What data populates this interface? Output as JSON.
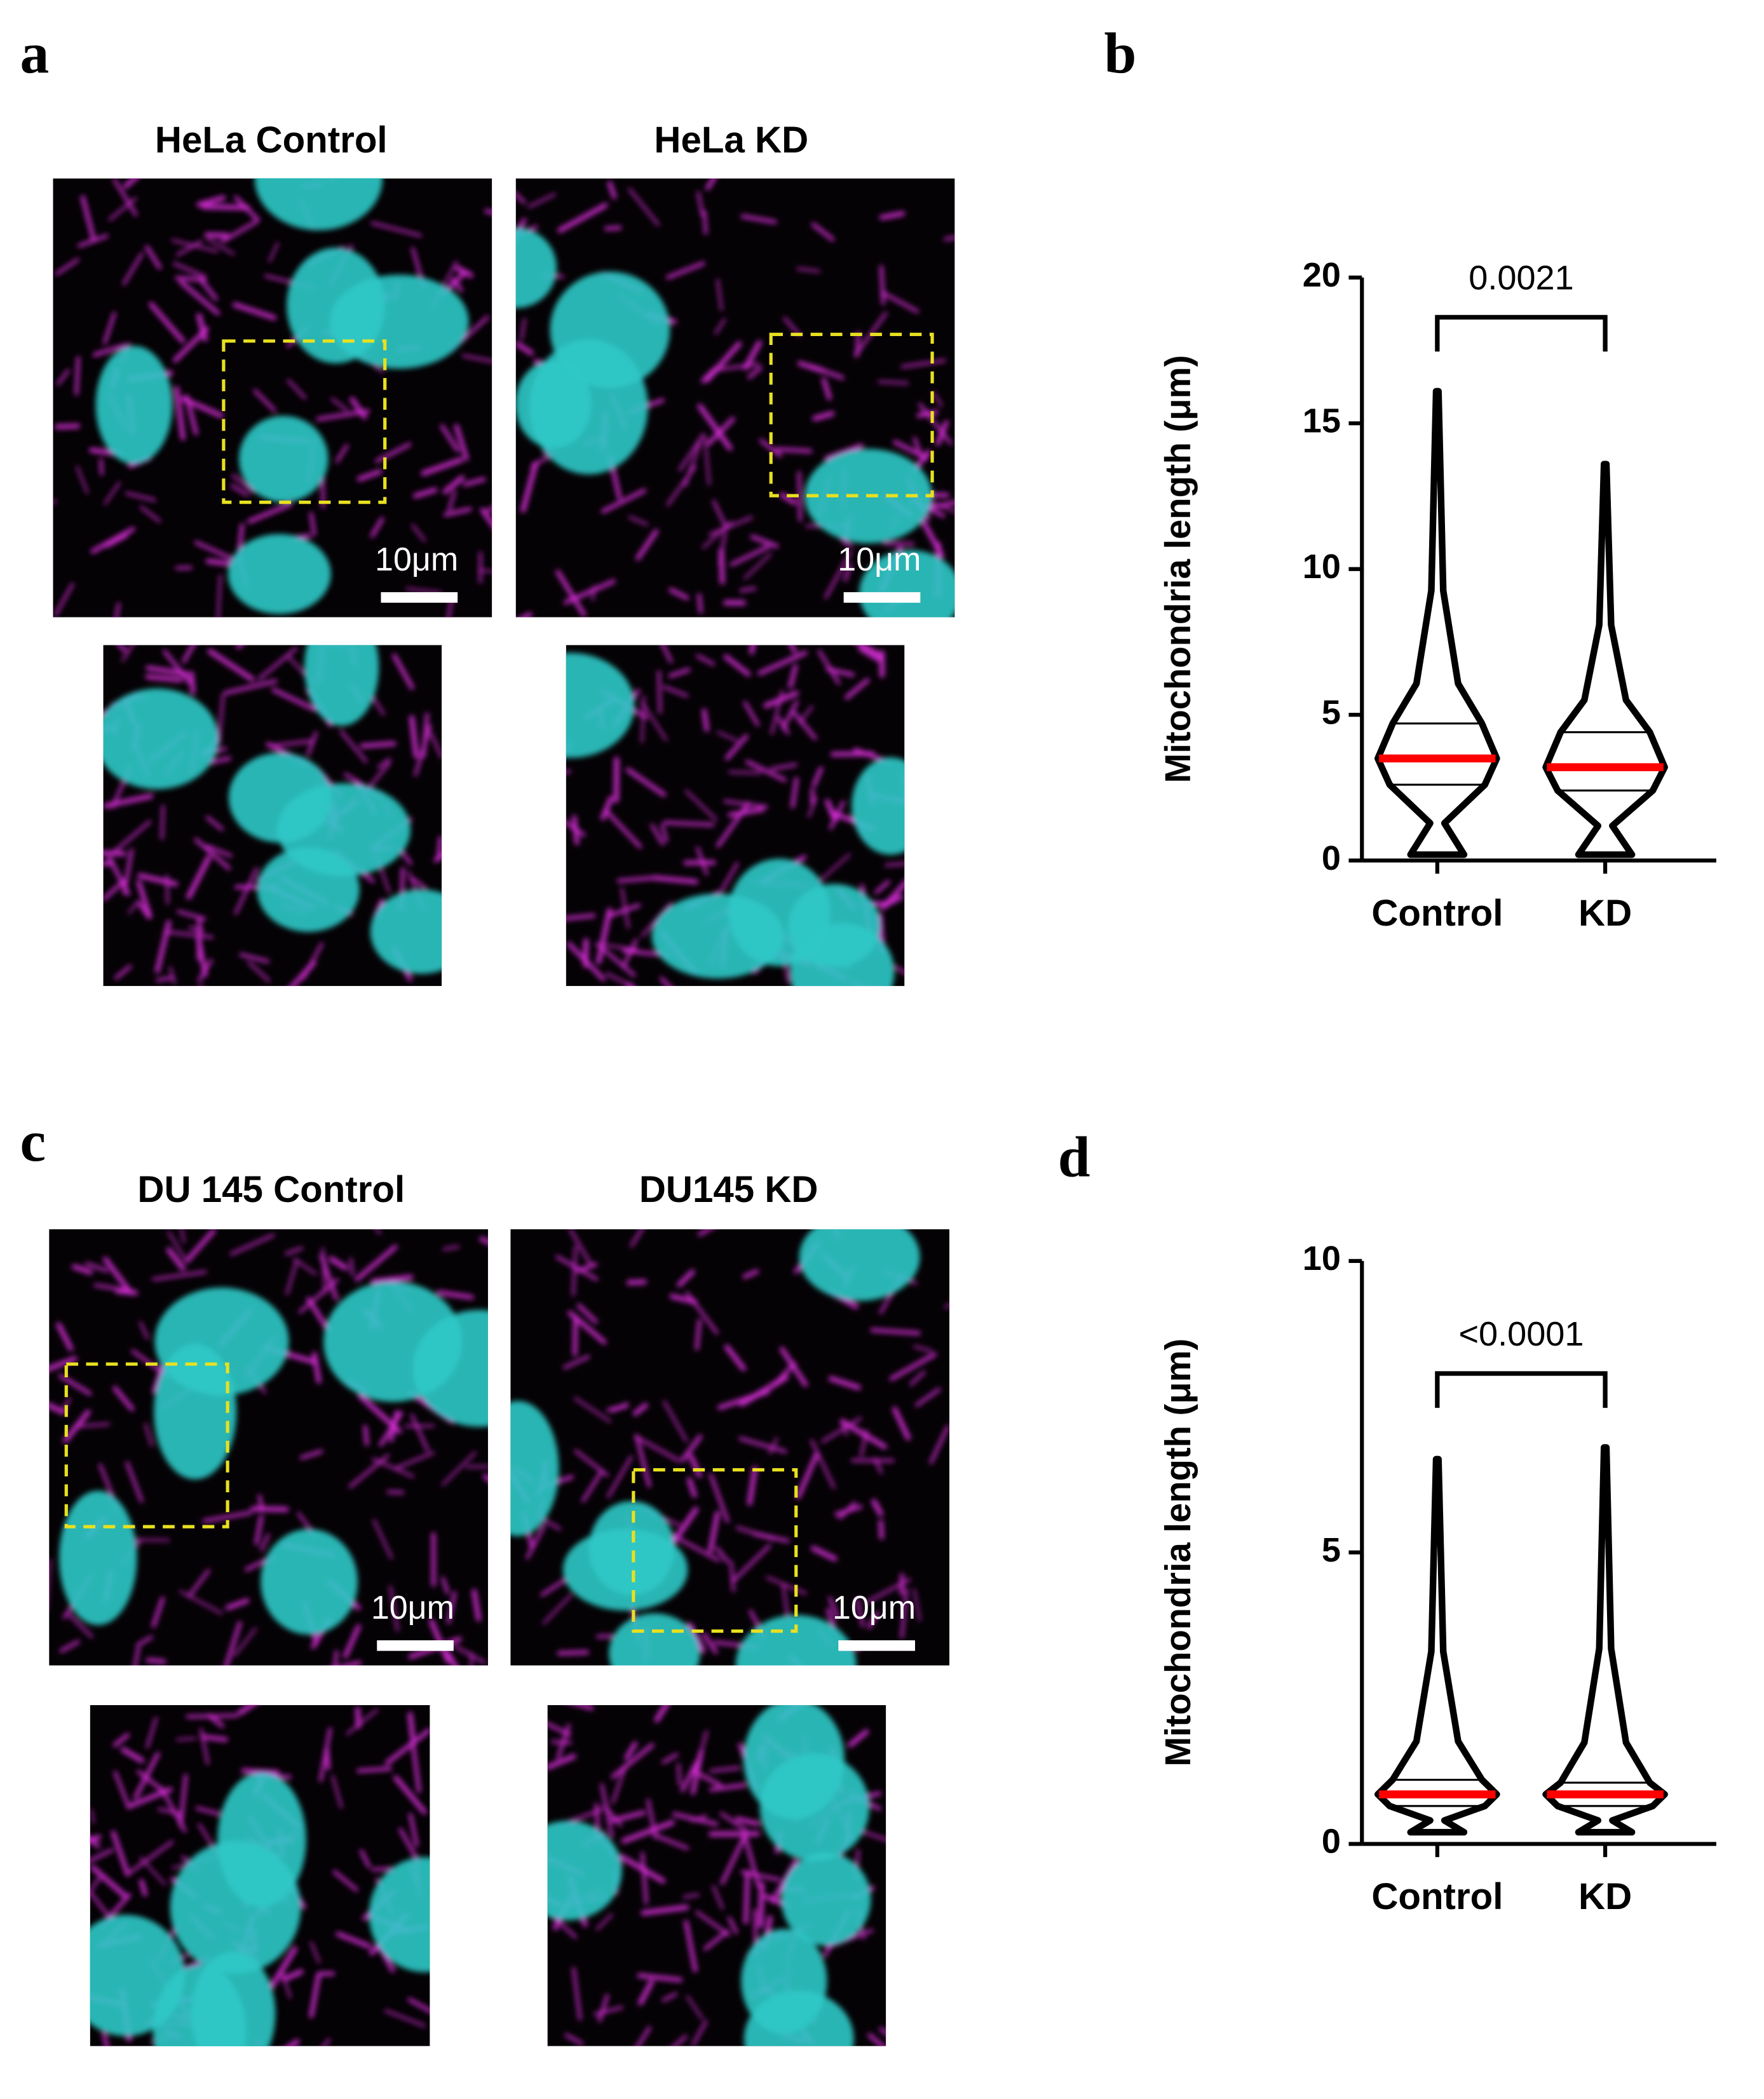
{
  "panels": [
    {
      "label": "a",
      "images": [
        {
          "title": "HeLa Control",
          "scale_bar": "10μm"
        },
        {
          "title": "HeLa KD",
          "scale_bar": "10μm"
        }
      ]
    },
    {
      "label": "b"
    },
    {
      "label": "c",
      "images": [
        {
          "title": "DU 145 Control",
          "scale_bar": "10μm"
        },
        {
          "title": "DU145 KD",
          "scale_bar": "10μm"
        }
      ]
    },
    {
      "label": "d"
    }
  ],
  "chart_data": [
    {
      "type": "violin",
      "ylabel": "Mitochondria length (μm)",
      "categories": [
        "Control",
        "KD"
      ],
      "min": [
        0.2,
        0.2
      ],
      "q1": [
        2.6,
        2.4
      ],
      "median": [
        3.5,
        3.2
      ],
      "q3": [
        4.7,
        4.4
      ],
      "max": [
        16.1,
        13.6
      ],
      "color": "#000000",
      "median_color": "#ff0000",
      "ylim": [
        0,
        20
      ],
      "yticks": [
        0,
        5,
        10,
        15,
        20
      ],
      "annotation": "0.0021"
    },
    {
      "type": "violin",
      "ylabel": "Mitochondria length (μm)",
      "categories": [
        "Control",
        "KD"
      ],
      "min": [
        0.2,
        0.2
      ],
      "q1": [
        0.65,
        0.65
      ],
      "median": [
        0.85,
        0.85
      ],
      "q3": [
        1.1,
        1.05
      ],
      "max": [
        6.6,
        6.8
      ],
      "color": "#000000",
      "median_color": "#ff0000",
      "ylim": [
        0,
        10
      ],
      "yticks": [
        0,
        5,
        10
      ],
      "annotation": "<0.0001"
    }
  ]
}
